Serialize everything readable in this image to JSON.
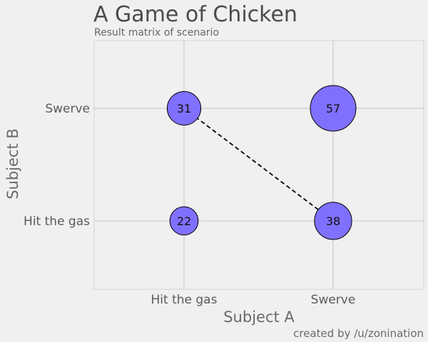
{
  "chart_data": {
    "type": "scatter",
    "title": "A Game of Chicken",
    "subtitle": "Result matrix of scenario",
    "xlabel": "Subject A",
    "ylabel": "Subject B",
    "caption": "created by /u/zonination",
    "x_categories": [
      "Hit the gas",
      "Swerve"
    ],
    "y_categories": [
      "Hit the gas",
      "Swerve"
    ],
    "points": [
      {
        "x": "Hit the gas",
        "y": "Swerve",
        "value": 31,
        "label": "31"
      },
      {
        "x": "Swerve",
        "y": "Swerve",
        "value": 57,
        "label": "57"
      },
      {
        "x": "Hit the gas",
        "y": "Hit the gas",
        "value": 22,
        "label": "22"
      },
      {
        "x": "Swerve",
        "y": "Hit the gas",
        "value": 38,
        "label": "38"
      }
    ],
    "connector": {
      "from": [
        "Hit the gas",
        "Swerve"
      ],
      "to": [
        "Swerve",
        "Hit the gas"
      ],
      "style": "dashed"
    },
    "grid": true,
    "colors": {
      "bubble_fill": "#8070ff",
      "bubble_stroke": "#000000",
      "grid": "#cccccc",
      "panel_border": "#d8d8d8",
      "background": "#f0f0f0"
    }
  }
}
